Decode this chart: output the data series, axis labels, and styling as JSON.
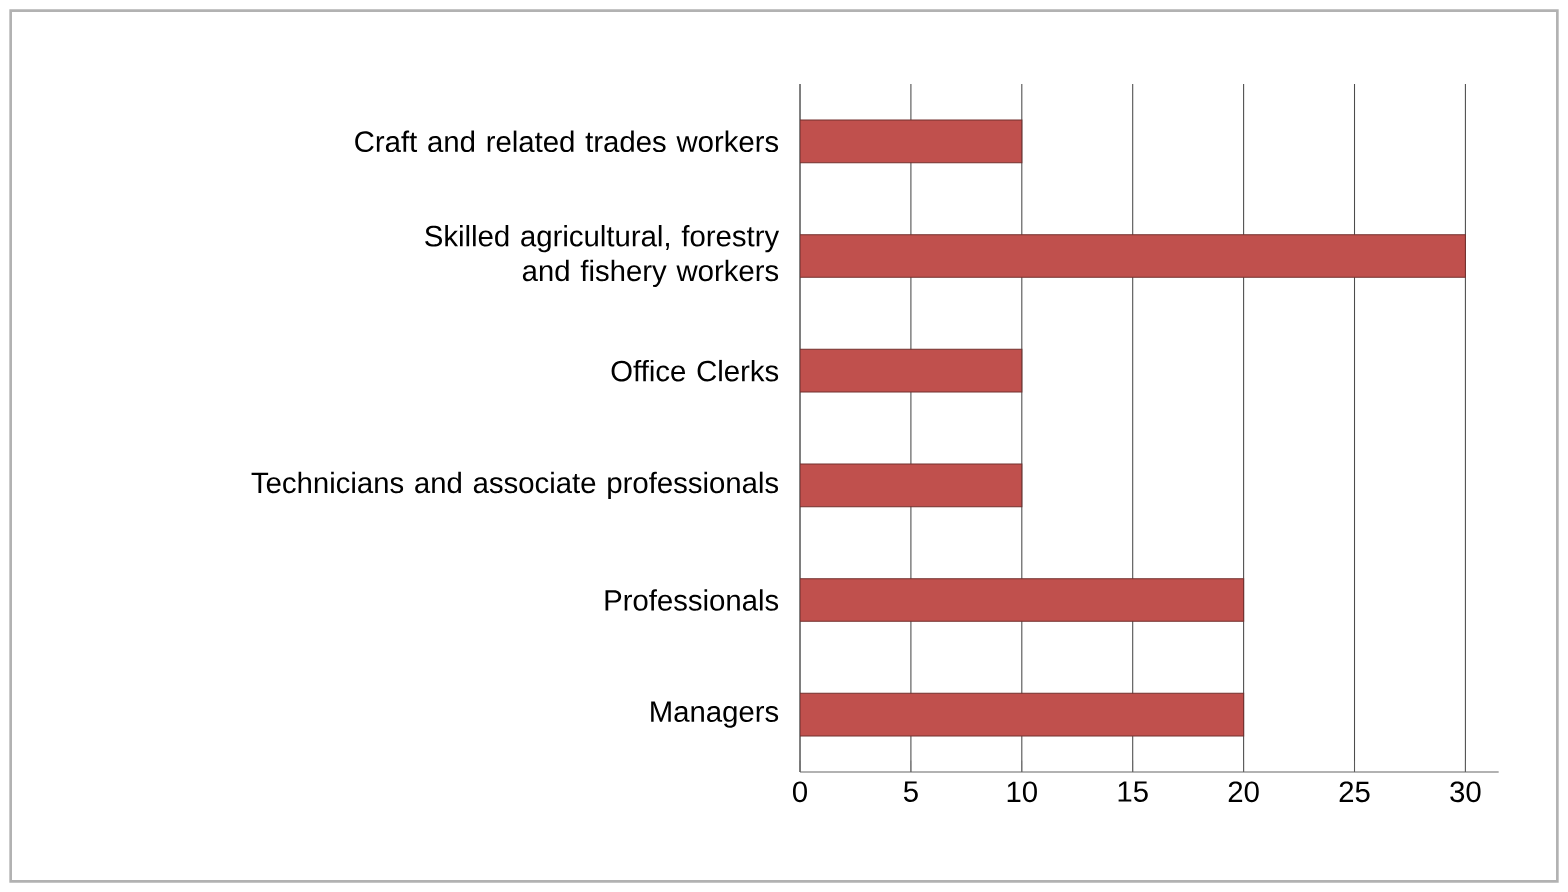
{
  "chart_data": {
    "type": "bar",
    "orientation": "horizontal",
    "categories": [
      "Craft and related trades workers",
      "Skilled agricultural, forestry and fishery workers",
      "Office Clerks",
      "Technicians and associate professionals",
      "Professionals",
      "Managers"
    ],
    "values": [
      10,
      30,
      10,
      10,
      20,
      20
    ],
    "color": "#c0504d",
    "xlim": [
      0,
      31.5
    ],
    "xticks": [
      0,
      5,
      10,
      15,
      20,
      25,
      30
    ],
    "grid": "x"
  }
}
